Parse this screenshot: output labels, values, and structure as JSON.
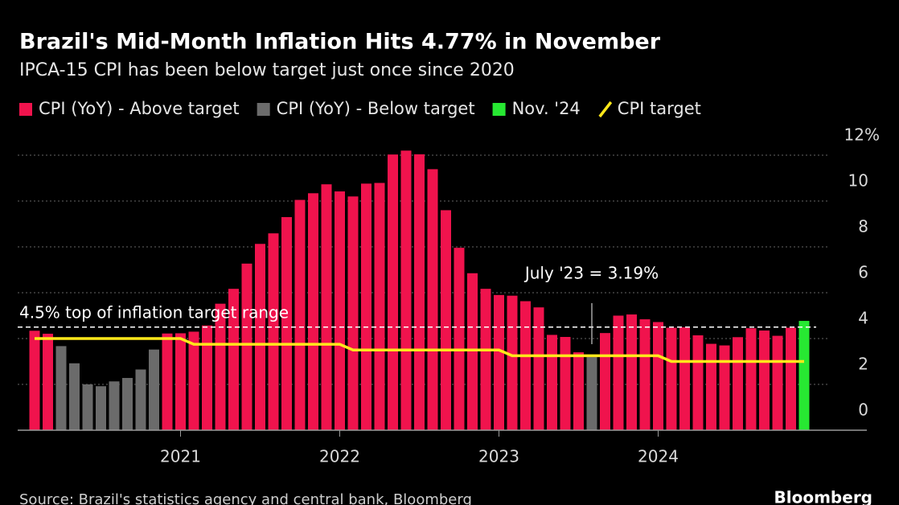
{
  "chart_data": {
    "type": "bar",
    "title": "Brazil's Mid-Month Inflation Hits 4.77% in November",
    "subtitle": "IPCA-15 CPI has been below target just once since 2020",
    "source": "Source: Brazil's statistics agency and central bank, Bloomberg",
    "brand": "Bloomberg",
    "categories": [
      null,
      null,
      null,
      null,
      null,
      null,
      null,
      null,
      null,
      null,
      null,
      "2021",
      null,
      null,
      null,
      null,
      null,
      null,
      null,
      null,
      null,
      null,
      null,
      "2022",
      null,
      null,
      null,
      null,
      null,
      null,
      null,
      null,
      null,
      null,
      null,
      "2023",
      null,
      null,
      null,
      null,
      null,
      null,
      null,
      null,
      null,
      null,
      null,
      "2024",
      null,
      null,
      null,
      null,
      null,
      null,
      null,
      null,
      null,
      null,
      null
    ],
    "series": [
      {
        "name": "CPI (YoY) - Above target",
        "kind": "bar",
        "color": "#f0134d",
        "values": [
          4.34,
          4.21,
          null,
          null,
          null,
          null,
          null,
          null,
          null,
          null,
          4.22,
          4.23,
          4.3,
          4.57,
          5.52,
          6.17,
          7.27,
          8.13,
          8.59,
          9.3,
          10.05,
          10.34,
          10.73,
          10.42,
          10.2,
          10.76,
          10.79,
          12.03,
          12.2,
          12.04,
          11.39,
          9.6,
          7.96,
          6.85,
          6.17,
          5.9,
          5.87,
          5.63,
          5.36,
          4.16,
          4.07,
          3.4,
          null,
          4.24,
          5.0,
          5.05,
          4.84,
          4.72,
          4.47,
          4.49,
          4.14,
          3.77,
          3.7,
          4.06,
          4.45,
          4.35,
          4.12,
          4.47,
          null
        ]
      },
      {
        "name": "CPI (YoY) - Below target",
        "kind": "bar",
        "color": "#6b6b6b",
        "values": [
          null,
          null,
          3.67,
          2.92,
          2.0,
          1.92,
          2.13,
          2.28,
          2.65,
          3.52,
          null,
          null,
          null,
          null,
          null,
          null,
          null,
          null,
          null,
          null,
          null,
          null,
          null,
          null,
          null,
          null,
          null,
          null,
          null,
          null,
          null,
          null,
          null,
          null,
          null,
          null,
          null,
          null,
          null,
          null,
          null,
          null,
          3.19,
          null,
          null,
          null,
          null,
          null,
          null,
          null,
          null,
          null,
          null,
          null,
          null,
          null,
          null,
          null,
          null
        ]
      },
      {
        "name": "Nov. '24",
        "kind": "bar",
        "color": "#27e832",
        "values": [
          null,
          null,
          null,
          null,
          null,
          null,
          null,
          null,
          null,
          null,
          null,
          null,
          null,
          null,
          null,
          null,
          null,
          null,
          null,
          null,
          null,
          null,
          null,
          null,
          null,
          null,
          null,
          null,
          null,
          null,
          null,
          null,
          null,
          null,
          null,
          null,
          null,
          null,
          null,
          null,
          null,
          null,
          null,
          null,
          null,
          null,
          null,
          null,
          null,
          null,
          null,
          null,
          null,
          null,
          null,
          null,
          null,
          null,
          4.77
        ]
      },
      {
        "name": "CPI target",
        "kind": "line",
        "color": "#ffe81a",
        "values": [
          4.0,
          4.0,
          4.0,
          4.0,
          4.0,
          4.0,
          4.0,
          4.0,
          4.0,
          4.0,
          4.0,
          4.0,
          3.75,
          3.75,
          3.75,
          3.75,
          3.75,
          3.75,
          3.75,
          3.75,
          3.75,
          3.75,
          3.75,
          3.75,
          3.5,
          3.5,
          3.5,
          3.5,
          3.5,
          3.5,
          3.5,
          3.5,
          3.5,
          3.5,
          3.5,
          3.5,
          3.25,
          3.25,
          3.25,
          3.25,
          3.25,
          3.25,
          3.25,
          3.25,
          3.25,
          3.25,
          3.25,
          3.25,
          3.0,
          3.0,
          3.0,
          3.0,
          3.0,
          3.0,
          3.0,
          3.0,
          3.0,
          3.0,
          3.0
        ]
      }
    ],
    "ylim": [
      0,
      13
    ],
    "yticks": [
      0,
      2,
      4,
      6,
      8,
      10,
      {
        "value": 12,
        "label": "12%"
      }
    ],
    "grid": true,
    "reference_line": {
      "value": 4.5,
      "label": "4.5% top of inflation target range"
    },
    "annotation": {
      "text": "July '23 = 3.19%",
      "series": 1,
      "index": 42
    }
  }
}
